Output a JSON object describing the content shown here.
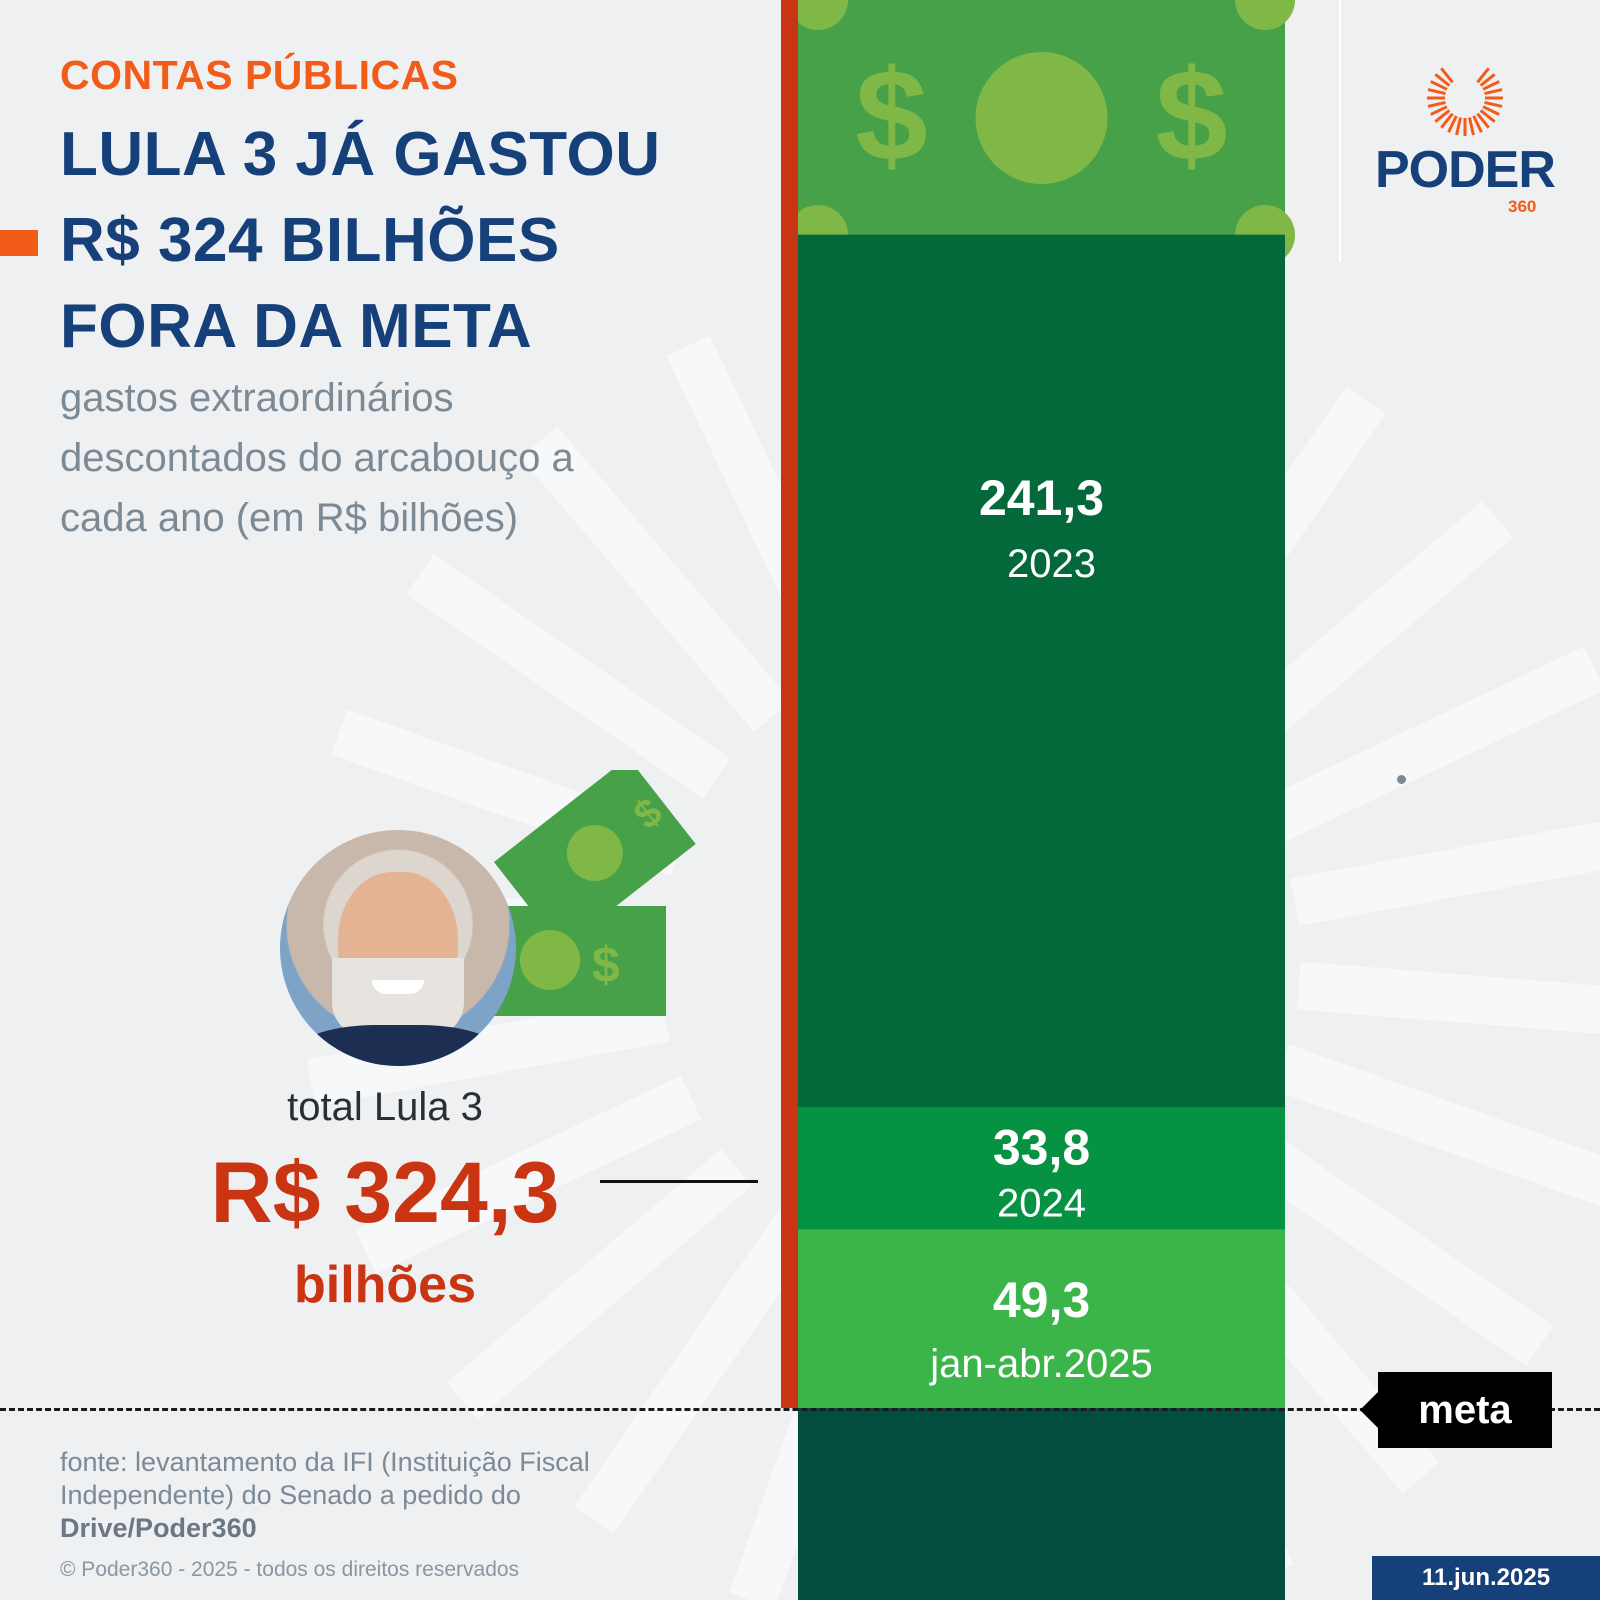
{
  "header": {
    "kicker": "CONTAS PÚBLICAS",
    "headline_lines": [
      "LULA 3 JÁ GASTOU",
      "R$ 324 BILHÕES",
      "FORA DA META"
    ],
    "subtitle_lines": [
      "gastos extraordinários",
      "descontados do arcabouço a",
      "cada ano (em R$ bilhões)"
    ]
  },
  "total": {
    "label": "total Lula 3",
    "value": "R$ 324,3",
    "unit": "bilhões"
  },
  "meta_label": "meta",
  "logo": {
    "word": "PODER",
    "sub": "360"
  },
  "source": {
    "text": "fonte: levantamento da IFI (Instituição Fiscal Independente) do Senado a pedido do",
    "bold": "Drive/Poder360"
  },
  "copyright": "© Poder360 - 2025 - todos os direitos reservados",
  "date": "11.jun.2025",
  "colors": {
    "accent_orange": "#f25c19",
    "title_blue": "#16407a",
    "total_red": "#c93512",
    "bar_2023": "#03693a",
    "bar_2024": "#059242",
    "bar_2025": "#3bb54a",
    "banknote": "#46a148",
    "below_meta": "#024d3e"
  },
  "chart_data": {
    "type": "bar",
    "stacked": true,
    "categories": [
      "2023",
      "2024",
      "jan-abr.2025"
    ],
    "values": [
      241.3,
      33.8,
      49.3
    ],
    "value_labels": [
      "241,3",
      "33,8",
      "49,3"
    ],
    "total": 324.3,
    "title": "LULA 3 JÁ GASTOU R$ 324 BILHÕES FORA DA META",
    "ylabel": "R$ bilhões",
    "reference_line": "meta"
  }
}
